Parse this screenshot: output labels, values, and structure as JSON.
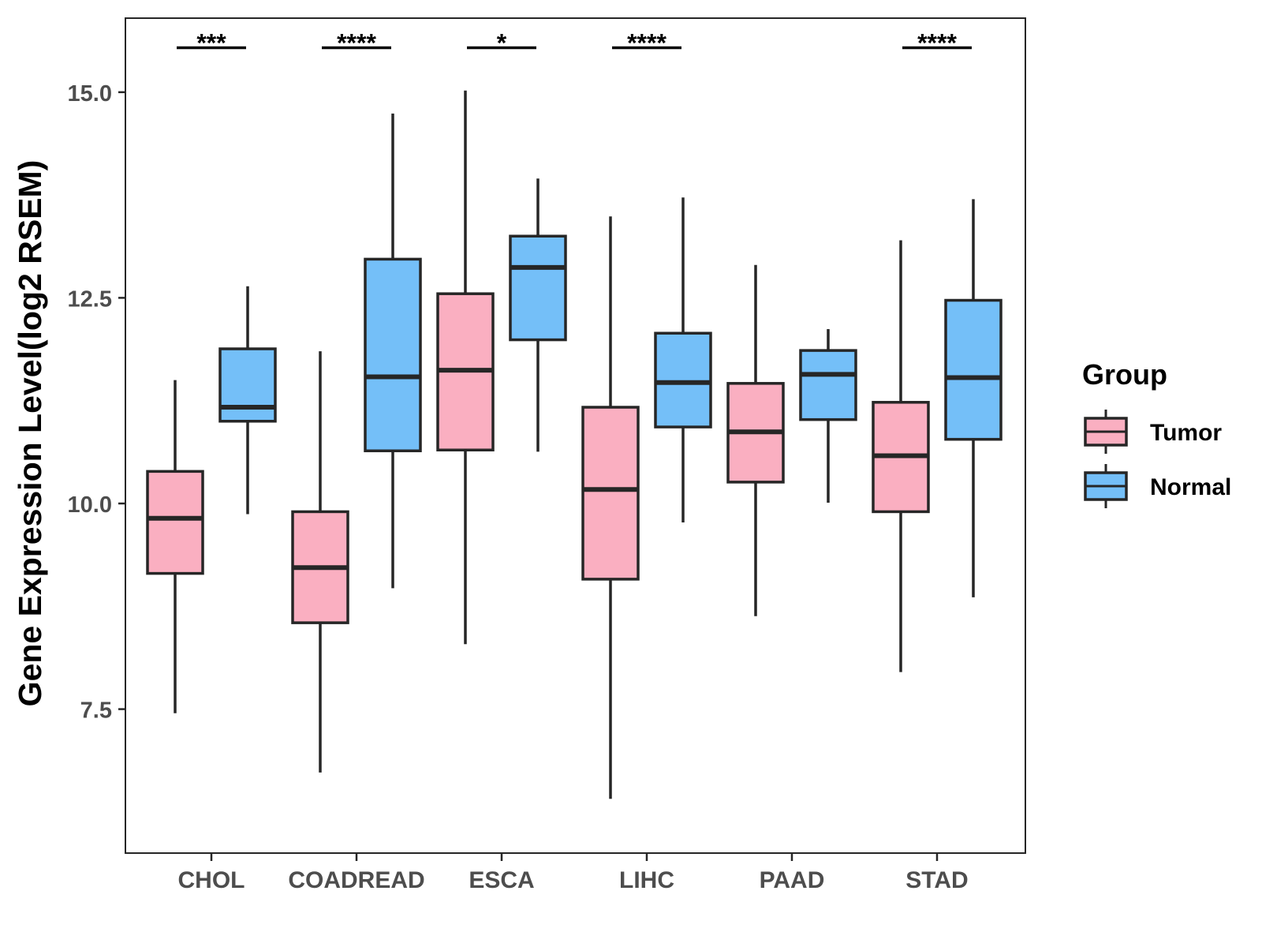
{
  "chart_data": {
    "type": "boxplot",
    "title": "",
    "xlabel": "",
    "ylabel": "Gene Expression Level(log2 RSEM)",
    "ylim": [
      5.75,
      15.9
    ],
    "yticks": [
      7.5,
      10.0,
      12.5,
      15.0
    ],
    "ytick_labels": [
      "7.5",
      "10.0",
      "12.5",
      "15.0"
    ],
    "categories": [
      "CHOL",
      "COADREAD",
      "ESCA",
      "LIHC",
      "PAAD",
      "STAD"
    ],
    "groups": [
      {
        "name": "Tumor",
        "color": "#FAAFC1"
      },
      {
        "name": "Normal",
        "color": "#74BFF8"
      }
    ],
    "series": [
      {
        "name": "Tumor",
        "boxes": [
          {
            "category": "CHOL",
            "whisker_low": 7.45,
            "q1": 9.15,
            "median": 9.82,
            "q3": 10.39,
            "whisker_high": 11.5
          },
          {
            "category": "COADREAD",
            "whisker_low": 6.73,
            "q1": 8.55,
            "median": 9.22,
            "q3": 9.9,
            "whisker_high": 11.85
          },
          {
            "category": "ESCA",
            "whisker_low": 8.29,
            "q1": 10.65,
            "median": 11.62,
            "q3": 12.55,
            "whisker_high": 15.02
          },
          {
            "category": "LIHC",
            "whisker_low": 6.41,
            "q1": 9.08,
            "median": 10.17,
            "q3": 11.17,
            "whisker_high": 13.49
          },
          {
            "category": "PAAD",
            "whisker_low": 8.63,
            "q1": 10.26,
            "median": 10.87,
            "q3": 11.46,
            "whisker_high": 12.9
          },
          {
            "category": "STAD",
            "whisker_low": 7.95,
            "q1": 9.9,
            "median": 10.58,
            "q3": 11.23,
            "whisker_high": 13.2
          }
        ]
      },
      {
        "name": "Normal",
        "boxes": [
          {
            "category": "CHOL",
            "whisker_low": 9.87,
            "q1": 11.0,
            "median": 11.17,
            "q3": 11.88,
            "whisker_high": 12.64
          },
          {
            "category": "COADREAD",
            "whisker_low": 8.97,
            "q1": 10.64,
            "median": 11.54,
            "q3": 12.97,
            "whisker_high": 14.74
          },
          {
            "category": "ESCA",
            "whisker_low": 10.63,
            "q1": 11.99,
            "median": 12.87,
            "q3": 13.25,
            "whisker_high": 13.95
          },
          {
            "category": "LIHC",
            "whisker_low": 9.77,
            "q1": 10.93,
            "median": 11.47,
            "q3": 12.07,
            "whisker_high": 13.72
          },
          {
            "category": "PAAD",
            "whisker_low": 10.01,
            "q1": 11.02,
            "median": 11.57,
            "q3": 11.86,
            "whisker_high": 12.12
          },
          {
            "category": "STAD",
            "whisker_low": 8.86,
            "q1": 10.78,
            "median": 11.53,
            "q3": 12.47,
            "whisker_high": 13.7
          }
        ]
      }
    ],
    "significance": [
      {
        "category": "CHOL",
        "label": "***"
      },
      {
        "category": "COADREAD",
        "label": "****"
      },
      {
        "category": "ESCA",
        "label": "*"
      },
      {
        "category": "LIHC",
        "label": "****"
      },
      {
        "category": "STAD",
        "label": "****"
      }
    ],
    "significance_level": 15.54,
    "legend": {
      "title": "Group",
      "position": "right",
      "entries": [
        "Tumor",
        "Normal"
      ]
    },
    "grid": false
  }
}
